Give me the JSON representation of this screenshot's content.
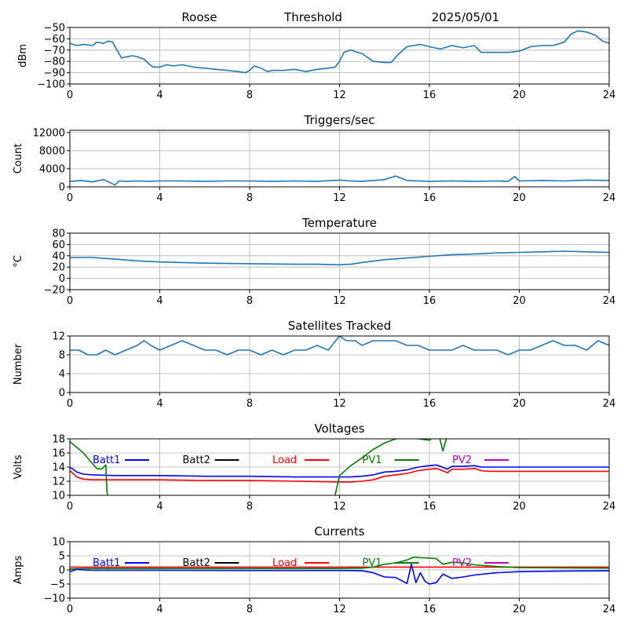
{
  "header": {
    "station": "Roose",
    "mode": "Threshold",
    "date": "2025/05/01"
  },
  "colors": {
    "default": "#1f77b4",
    "batt1": "#0000ff",
    "batt2": "#000000",
    "load": "#ff0000",
    "pv1": "#008000",
    "pv2": "#bf00bf",
    "grid": "#b0b0b0"
  },
  "chart_data": [
    {
      "id": "signal",
      "type": "line",
      "title": "",
      "xlabel": "",
      "ylabel": "dBm",
      "xlim": [
        0,
        24
      ],
      "ylim": [
        -100,
        -50
      ],
      "xticks": [
        0,
        4,
        8,
        12,
        16,
        20,
        24
      ],
      "yticks": [
        -100,
        -90,
        -80,
        -70,
        -60,
        -50
      ],
      "grid": true,
      "series": [
        {
          "color_key": "default",
          "x": [
            0,
            0.3,
            0.6,
            1.0,
            1.2,
            1.5,
            1.7,
            1.9,
            2.1,
            2.3,
            2.5,
            2.8,
            3.0,
            3.3,
            3.5,
            3.7,
            4.0,
            4.3,
            4.6,
            5.0,
            5.5,
            6.0,
            6.5,
            7.0,
            7.5,
            7.8,
            8.0,
            8.2,
            8.5,
            8.8,
            9.0,
            9.5,
            10.0,
            10.5,
            11.0,
            11.5,
            11.8,
            12.0,
            12.2,
            12.5,
            12.8,
            13.0,
            13.5,
            14.0,
            14.3,
            14.6,
            15.0,
            15.3,
            15.6,
            16.0,
            16.5,
            17.0,
            17.5,
            18.0,
            18.3,
            18.6,
            19.0,
            19.5,
            20.0,
            20.5,
            21.0,
            21.5,
            22.0,
            22.3,
            22.6,
            23.0,
            23.4,
            23.7,
            24
          ],
          "y": [
            -64,
            -66,
            -65,
            -66,
            -63,
            -64,
            -62,
            -63,
            -70,
            -77,
            -76,
            -75,
            -76,
            -78,
            -82,
            -85,
            -85,
            -83,
            -84,
            -83,
            -85,
            -86,
            -87,
            -88,
            -89,
            -90,
            -88,
            -84,
            -86,
            -89,
            -88,
            -88,
            -87,
            -89,
            -87,
            -86,
            -85,
            -80,
            -72,
            -70,
            -72,
            -73,
            -80,
            -81,
            -81,
            -74,
            -67,
            -66,
            -65,
            -67,
            -69,
            -66,
            -68,
            -66,
            -72,
            -72,
            -72,
            -72,
            -71,
            -67,
            -66,
            -66,
            -63,
            -56,
            -53,
            -54,
            -57,
            -62,
            -64
          ]
        }
      ]
    },
    {
      "id": "triggers",
      "type": "line",
      "title": "Triggers/sec",
      "xlabel": "",
      "ylabel": "Count",
      "xlim": [
        0,
        24
      ],
      "ylim": [
        0,
        12500
      ],
      "xticks": [
        0,
        4,
        8,
        12,
        16,
        20,
        24
      ],
      "yticks": [
        0,
        4000,
        8000,
        12000
      ],
      "grid": true,
      "series": [
        {
          "color_key": "default",
          "x": [
            0,
            0.5,
            1.0,
            1.5,
            1.8,
            2.0,
            2.2,
            2.5,
            3.0,
            3.5,
            4.0,
            5.0,
            6.0,
            7.0,
            8.0,
            9.0,
            10.0,
            11.0,
            12.0,
            12.5,
            13.0,
            13.5,
            14.0,
            14.5,
            15.0,
            15.5,
            16.0,
            17.0,
            18.0,
            19.0,
            19.5,
            19.8,
            20.0,
            21.0,
            22.0,
            23.0,
            24
          ],
          "y": [
            1200,
            1400,
            1100,
            1600,
            900,
            400,
            1300,
            1200,
            1300,
            1200,
            1300,
            1300,
            1200,
            1300,
            1300,
            1200,
            1300,
            1200,
            1500,
            1300,
            1200,
            1400,
            1600,
            2400,
            1400,
            1300,
            1200,
            1300,
            1200,
            1300,
            1200,
            2300,
            1300,
            1400,
            1300,
            1500,
            1400
          ]
        }
      ]
    },
    {
      "id": "temperature",
      "type": "line",
      "title": "Temperature",
      "xlabel": "",
      "ylabel": "°C",
      "xlim": [
        0,
        24
      ],
      "ylim": [
        -20,
        80
      ],
      "xticks": [
        0,
        4,
        8,
        12,
        16,
        20,
        24
      ],
      "yticks": [
        -20,
        0,
        20,
        40,
        60,
        80
      ],
      "grid": true,
      "series": [
        {
          "color_key": "default",
          "x": [
            0,
            1,
            2,
            3,
            4,
            6,
            8,
            10,
            11,
            12,
            12.5,
            13,
            14,
            15,
            16,
            17,
            18,
            19,
            20,
            21,
            22,
            23,
            24
          ],
          "y": [
            37,
            37,
            34,
            31,
            29,
            27,
            26,
            25,
            25,
            24,
            25,
            28,
            33,
            36,
            39,
            42,
            43,
            45,
            46,
            47,
            48,
            47,
            46
          ]
        }
      ]
    },
    {
      "id": "satellites",
      "type": "line",
      "title": "Satellites Tracked",
      "xlabel": "",
      "ylabel": "Number",
      "xlim": [
        0,
        24
      ],
      "ylim": [
        0,
        12
      ],
      "xticks": [
        0,
        4,
        8,
        12,
        16,
        20,
        24
      ],
      "yticks": [
        0,
        4,
        8,
        12
      ],
      "grid": true,
      "series": [
        {
          "color_key": "default",
          "x": [
            0,
            0.4,
            0.8,
            1.2,
            1.6,
            2.0,
            2.5,
            3.0,
            3.3,
            3.6,
            4.0,
            4.5,
            5.0,
            5.5,
            6.0,
            6.5,
            7.0,
            7.5,
            8.0,
            8.5,
            9.0,
            9.5,
            10.0,
            10.5,
            11.0,
            11.5,
            12.0,
            12.3,
            12.7,
            13.0,
            13.5,
            14.0,
            14.5,
            15.0,
            15.5,
            16.0,
            16.5,
            17.0,
            17.5,
            18.0,
            18.5,
            19.0,
            19.5,
            20.0,
            20.5,
            21.0,
            21.5,
            22.0,
            22.5,
            23.0,
            23.5,
            24
          ],
          "y": [
            9,
            9,
            8,
            8,
            9,
            8,
            9,
            10,
            11,
            10,
            9,
            10,
            11,
            10,
            9,
            9,
            8,
            9,
            9,
            8,
            9,
            8,
            9,
            9,
            10,
            9,
            12,
            11,
            11,
            10,
            11,
            11,
            11,
            10,
            10,
            9,
            9,
            9,
            10,
            9,
            9,
            9,
            8,
            9,
            9,
            10,
            11,
            10,
            10,
            9,
            11,
            10
          ]
        }
      ]
    },
    {
      "id": "voltages",
      "type": "line",
      "title": "Voltages",
      "xlabel": "",
      "ylabel": "Volts",
      "xlim": [
        0,
        24
      ],
      "ylim": [
        10,
        18
      ],
      "xticks": [
        0,
        4,
        8,
        12,
        16,
        20,
        24
      ],
      "yticks": [
        10,
        12,
        14,
        16,
        18
      ],
      "grid": true,
      "legend": [
        {
          "name": "Batt1",
          "color_key": "batt1"
        },
        {
          "name": "Batt2",
          "color_key": "batt2"
        },
        {
          "name": "Load",
          "color_key": "load"
        },
        {
          "name": "PV1",
          "color_key": "pv1"
        },
        {
          "name": "PV2",
          "color_key": "pv2"
        }
      ],
      "series": [
        {
          "color_key": "batt1",
          "x": [
            0,
            0.1,
            0.3,
            0.6,
            1.0,
            2.0,
            4.0,
            6.0,
            8.0,
            10.0,
            12.0,
            12.5,
            13.0,
            13.5,
            14.0,
            14.5,
            15.0,
            15.5,
            16.0,
            16.3,
            16.5,
            16.8,
            17.0,
            17.5,
            18.0,
            18.3,
            18.6,
            19.0,
            20.0,
            22.0,
            24
          ],
          "y": [
            13.9,
            13.8,
            13.3,
            13.0,
            12.9,
            12.8,
            12.8,
            12.7,
            12.7,
            12.6,
            12.6,
            12.6,
            12.7,
            12.9,
            13.3,
            13.4,
            13.6,
            14.0,
            14.2,
            14.3,
            14.1,
            13.7,
            14.1,
            14.1,
            14.2,
            14.0,
            14.0,
            14.0,
            14.0,
            14.0,
            14.0
          ]
        },
        {
          "color_key": "load",
          "x": [
            0,
            0.1,
            0.3,
            0.6,
            1.0,
            2.0,
            4.0,
            6.0,
            8.0,
            10.0,
            12.0,
            12.5,
            13.0,
            13.5,
            14.0,
            14.5,
            15.0,
            15.5,
            16.0,
            16.3,
            16.5,
            16.8,
            17.0,
            17.5,
            18.0,
            18.3,
            18.6,
            19.0,
            20.0,
            22.0,
            24
          ],
          "y": [
            13.5,
            13.2,
            12.6,
            12.3,
            12.2,
            12.2,
            12.2,
            12.1,
            12.1,
            12.0,
            11.9,
            11.9,
            12.0,
            12.2,
            12.7,
            12.9,
            13.1,
            13.5,
            13.7,
            13.8,
            13.6,
            13.2,
            13.7,
            13.7,
            13.8,
            13.5,
            13.4,
            13.4,
            13.4,
            13.4,
            13.4
          ]
        },
        {
          "color_key": "pv1",
          "x": [
            0,
            0.3,
            0.6,
            1.0,
            1.2,
            1.4,
            1.6,
            1.65,
            1.8
          ],
          "y": [
            17.6,
            16.8,
            16.0,
            14.5,
            13.8,
            13.7,
            14.3,
            10.5,
            8.0
          ]
        },
        {
          "color_key": "pv1",
          "x": [
            11.6,
            11.8,
            12.0,
            12.5,
            13.0,
            13.5,
            14.0,
            14.5,
            15.0,
            15.5,
            16.0,
            16.2,
            16.4,
            16.6,
            16.8,
            17.0
          ],
          "y": [
            8.0,
            10.0,
            12.8,
            14.2,
            15.3,
            16.5,
            17.4,
            18.0,
            18.2,
            18.0,
            17.8,
            18.3,
            18.8,
            16.3,
            18.5,
            19.0
          ]
        }
      ]
    },
    {
      "id": "currents",
      "type": "line",
      "title": "Currents",
      "xlabel": "",
      "ylabel": "Amps",
      "xlim": [
        0,
        24
      ],
      "ylim": [
        -10,
        10
      ],
      "xticks": [
        0,
        4,
        8,
        12,
        16,
        20,
        24
      ],
      "yticks": [
        -10,
        -5,
        0,
        5,
        10
      ],
      "grid": true,
      "legend": [
        {
          "name": "Batt1",
          "color_key": "batt1"
        },
        {
          "name": "Batt2",
          "color_key": "batt2"
        },
        {
          "name": "Load",
          "color_key": "load"
        },
        {
          "name": "PV1",
          "color_key": "pv1"
        },
        {
          "name": "PV2",
          "color_key": "pv2"
        }
      ],
      "series": [
        {
          "color_key": "load",
          "x": [
            0,
            4,
            8,
            12,
            16,
            20,
            24
          ],
          "y": [
            1.0,
            1.0,
            1.0,
            1.0,
            1.0,
            1.0,
            1.0
          ]
        },
        {
          "color_key": "pv1",
          "x": [
            0,
            0.3,
            1,
            4,
            8,
            12,
            13,
            13.5,
            14,
            14.5,
            15,
            15.3,
            15.6,
            16,
            16.3,
            16.6,
            17,
            17.5,
            18,
            19,
            20,
            22,
            24
          ],
          "y": [
            0.3,
            0.4,
            0.5,
            0.5,
            0.5,
            0.5,
            0.6,
            1.0,
            2.0,
            2.5,
            3.5,
            4.5,
            4.3,
            4.2,
            4.0,
            2.0,
            2.7,
            2.5,
            1.8,
            1.2,
            0.8,
            0.7,
            0.6
          ]
        },
        {
          "color_key": "batt1",
          "x": [
            0,
            0.3,
            0.6,
            1,
            4,
            8,
            12,
            13,
            13.5,
            14,
            14.5,
            15,
            15.2,
            15.4,
            15.6,
            15.8,
            16,
            16.3,
            16.6,
            17,
            17.5,
            18,
            19,
            20,
            22,
            24
          ],
          "y": [
            -0.6,
            0.2,
            0.0,
            -0.1,
            -0.1,
            -0.2,
            -0.2,
            -0.3,
            -1.0,
            -2.5,
            -2.7,
            -4.8,
            2.0,
            -4.5,
            -1.0,
            -4.0,
            -5.0,
            -4.5,
            -1.5,
            -3.0,
            -2.5,
            -1.8,
            -1.0,
            -0.6,
            -0.4,
            -0.3
          ]
        }
      ]
    }
  ]
}
